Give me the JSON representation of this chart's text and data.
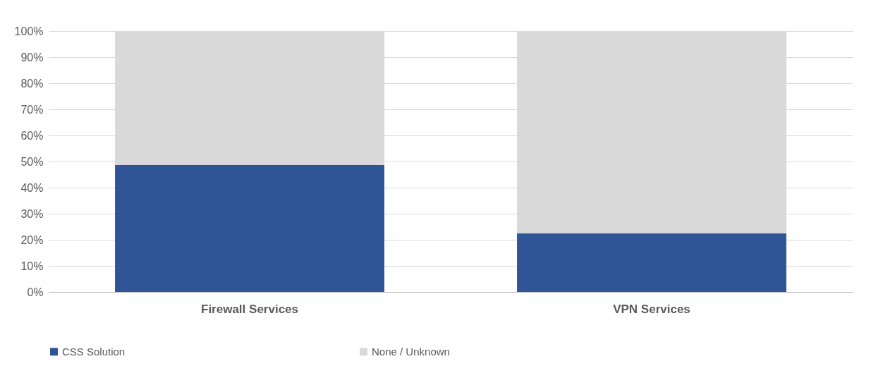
{
  "chart_data": {
    "type": "bar",
    "stacked": true,
    "categories": [
      "Firewall Services",
      "VPN Services"
    ],
    "series": [
      {
        "name": "CSS Solution",
        "color": "#2f5597",
        "values": [
          48.7,
          22.4
        ]
      },
      {
        "name": "None / Unknown",
        "color": "#d9d9d9",
        "values": [
          51.3,
          77.6
        ]
      }
    ],
    "ylim": [
      0,
      100
    ],
    "yticks": [
      {
        "value": 0,
        "label": "0%"
      },
      {
        "value": 10,
        "label": "10%"
      },
      {
        "value": 20,
        "label": "20%"
      },
      {
        "value": 30,
        "label": "30%"
      },
      {
        "value": 40,
        "label": "40%"
      },
      {
        "value": 50,
        "label": "50%"
      },
      {
        "value": 60,
        "label": "60%"
      },
      {
        "value": 70,
        "label": "70%"
      },
      {
        "value": 80,
        "label": "80%"
      },
      {
        "value": 90,
        "label": "90%"
      },
      {
        "value": 100,
        "label": "100%"
      }
    ],
    "grid": "y",
    "legend": "bottom"
  }
}
